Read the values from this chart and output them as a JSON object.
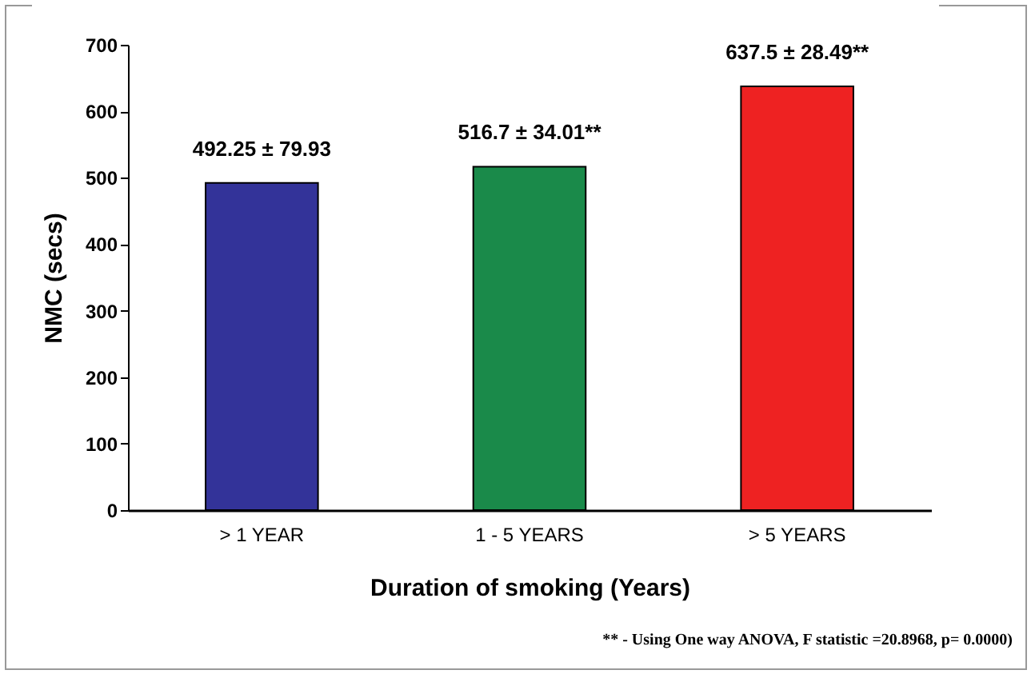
{
  "chart_data": {
    "type": "bar",
    "xlabel": "Duration of smoking (Years)",
    "ylabel": "NMC (secs)",
    "categories": [
      "> 1 YEAR",
      "1 - 5 YEARS",
      "> 5 YEARS"
    ],
    "values": [
      492.25,
      516.7,
      637.5
    ],
    "colors": [
      "#333399",
      "#1a8a4a",
      "#ee2222"
    ],
    "value_labels": [
      "492.25 ± 79.93",
      "516.7 ± 34.01**",
      "637.5 ± 28.49**"
    ],
    "ylim": [
      0,
      700
    ],
    "yticks": [
      0,
      100,
      200,
      300,
      400,
      500,
      600,
      700
    ],
    "grid": false,
    "annotations": [
      "** - Using One way ANOVA, F statistic =20.8968,  p= 0.0000)"
    ]
  }
}
